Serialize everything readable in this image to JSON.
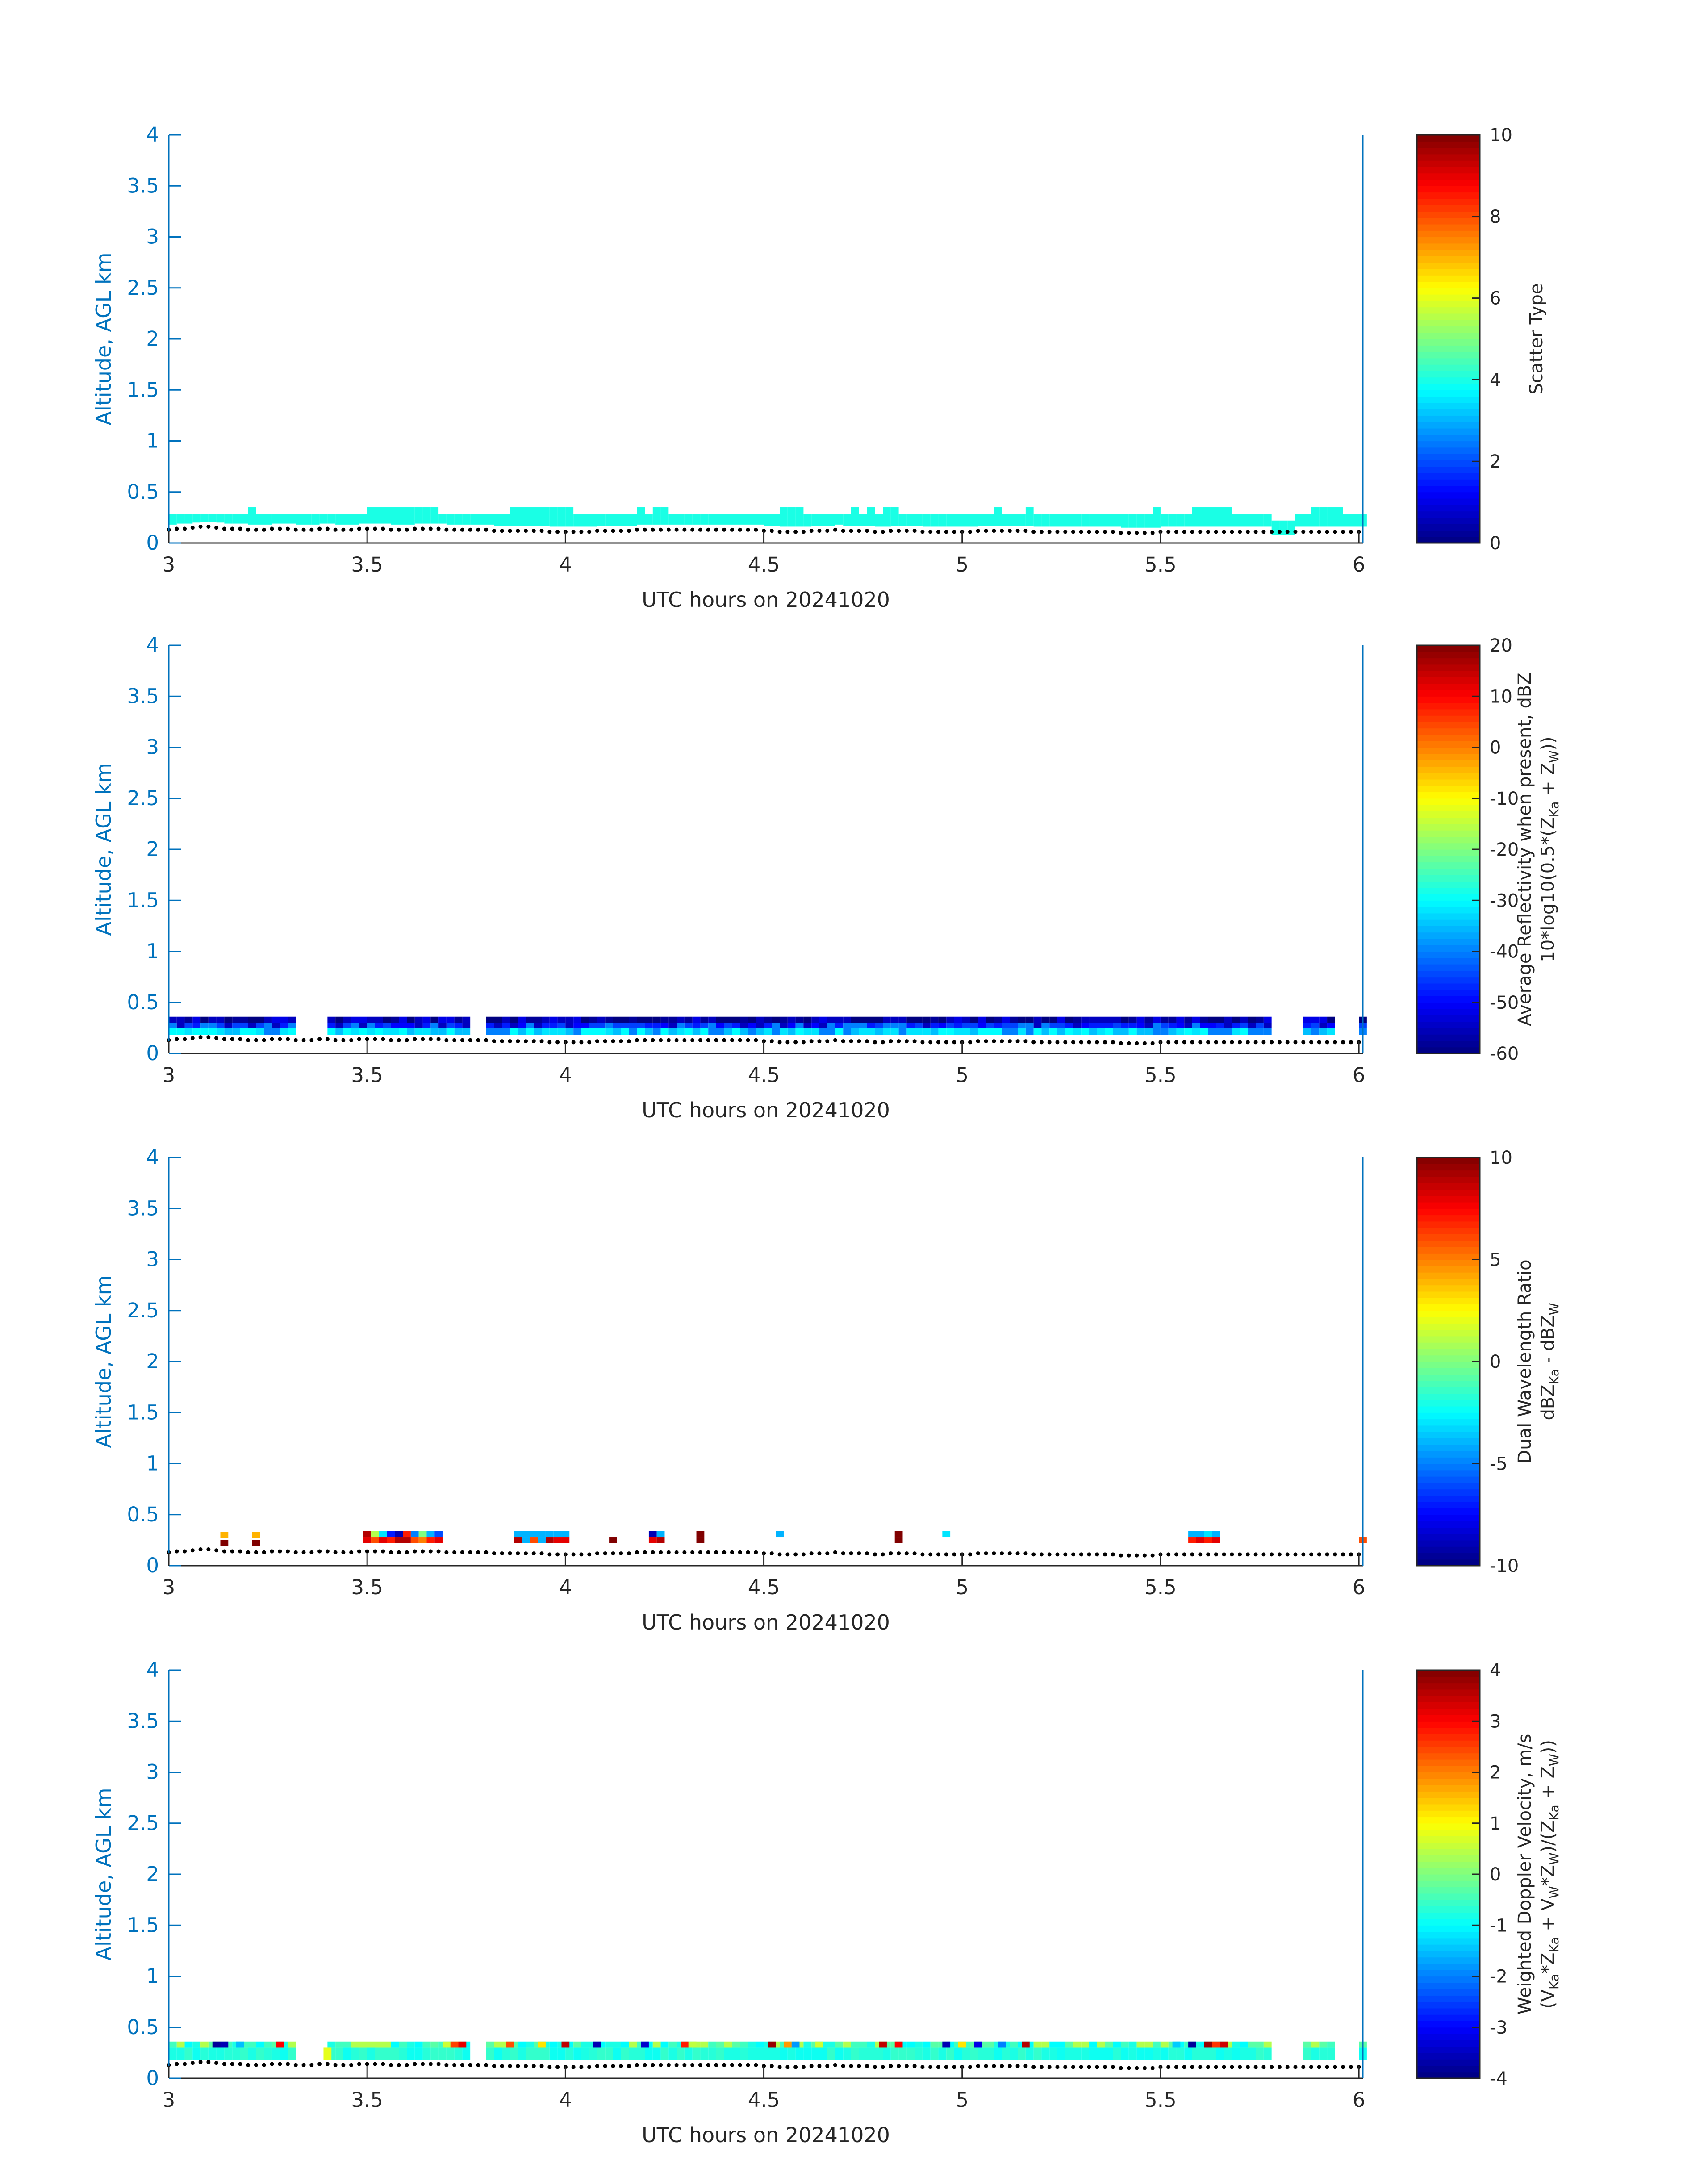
{
  "chart_data": [
    {
      "type": "heatmap",
      "xlabel": "UTC hours on 20241020",
      "ylabel": "Altitude, AGL km",
      "xlim": [
        3,
        6.01
      ],
      "ylim": [
        0,
        4
      ],
      "xticks": [
        "3",
        "3.5",
        "4",
        "4.5",
        "5",
        "5.5",
        "6"
      ],
      "yticks": [
        "0",
        "0.5",
        "1",
        "1.5",
        "2",
        "2.5",
        "3",
        "3.5",
        "4"
      ],
      "colorbar": {
        "label_lines": [
          [
            {
              "t": "Scatter Type"
            }
          ]
        ],
        "ticks": [
          "0",
          "2",
          "4",
          "6",
          "8",
          "10"
        ],
        "range": [
          0,
          10
        ],
        "colormap": "jet"
      },
      "layer": {
        "x_start": 3.0,
        "x_end": 6.01,
        "dx": 0.02,
        "base_km": [
          0.14,
          0.15,
          0.15,
          0.16,
          0.17,
          0.17,
          0.16,
          0.15,
          0.15,
          0.15,
          0.14,
          0.14,
          0.14,
          0.15,
          0.15,
          0.15,
          0.14,
          0.14,
          0.14,
          0.15,
          0.15,
          0.14,
          0.14,
          0.14,
          0.15,
          0.15,
          0.15,
          0.15,
          0.14,
          0.14,
          0.14,
          0.15,
          0.15,
          0.15,
          0.15,
          0.14,
          0.14,
          0.14,
          0.14,
          0.14,
          0.14,
          0.13,
          0.13,
          0.13,
          0.13,
          0.13,
          0.13,
          0.13,
          0.12,
          0.12,
          0.12,
          0.12,
          0.12,
          0.12,
          0.13,
          0.13,
          0.13,
          0.13,
          0.13,
          0.14,
          0.14,
          0.14,
          0.14,
          0.14,
          0.14,
          0.14,
          0.14,
          0.14,
          0.14,
          0.14,
          0.14,
          0.14,
          0.14,
          0.14,
          0.14,
          0.13,
          0.13,
          0.12,
          0.12,
          0.12,
          0.12,
          0.13,
          0.13,
          0.13,
          0.14,
          0.13,
          0.13,
          0.13,
          0.13,
          0.12,
          0.12,
          0.13,
          0.13,
          0.13,
          0.13,
          0.12,
          0.12,
          0.12,
          0.12,
          0.12,
          0.12,
          0.12,
          0.13,
          0.13,
          0.13,
          0.13,
          0.13,
          0.13,
          0.13,
          0.12,
          0.12,
          0.12,
          0.12,
          0.12,
          0.12,
          0.12,
          0.12,
          0.12,
          0.12,
          0.12,
          0.11,
          0.11,
          0.11,
          0.11,
          0.11,
          0.12,
          0.12,
          0.12,
          0.12,
          0.12,
          0.12,
          0.12,
          0.12,
          0.12,
          0.12,
          0.12,
          0.12,
          0.12,
          0.12,
          0.12,
          0.12,
          0.12,
          0.12,
          0.12,
          0.12,
          0.12,
          0.12,
          0.12,
          0.12,
          0.12,
          0.12
        ],
        "rows": [
          {
            "y0": 0.18,
            "y1": 0.28,
            "cells": [
              4
            ]
          },
          {
            "y0": 0.28,
            "y1": 0.35,
            "cells": [
              4
            ]
          }
        ],
        "gaps": [
          [
            5.77,
            5.82
          ]
        ],
        "top_bumps": [
          [
            3.2,
            3.22
          ],
          [
            3.5,
            3.68
          ],
          [
            3.86,
            4.02
          ],
          [
            4.17,
            4.19
          ],
          [
            4.21,
            4.25
          ],
          [
            4.53,
            4.58
          ],
          [
            4.7,
            4.72
          ],
          [
            4.75,
            4.77
          ],
          [
            4.79,
            4.82
          ],
          [
            5.06,
            5.08
          ],
          [
            5.15,
            5.17
          ],
          [
            5.47,
            5.49
          ],
          [
            5.56,
            5.66
          ],
          [
            5.86,
            5.94
          ]
        ],
        "cell_values": [
          4
        ]
      },
      "surface": {
        "y": [
          0.14,
          0.14,
          0.15,
          0.16,
          0.17,
          0.16,
          0.15,
          0.15,
          0.14,
          0.14,
          0.13
        ]
      }
    },
    {
      "type": "heatmap",
      "xlabel": "UTC hours on 20241020",
      "ylabel": "Altitude, AGL km",
      "xlim": [
        3,
        6.01
      ],
      "ylim": [
        0,
        4
      ],
      "xticks": [
        "3",
        "3.5",
        "4",
        "4.5",
        "5",
        "5.5",
        "6"
      ],
      "yticks": [
        "0",
        "0.5",
        "1",
        "1.5",
        "2",
        "2.5",
        "3",
        "3.5",
        "4"
      ],
      "colorbar": {
        "label_lines": [
          [
            {
              "t": "Average Reflectivity when present, dBZ"
            }
          ],
          [
            {
              "t": "10*log10(0.5*(Z"
            },
            {
              "t": "Ka",
              "sub": true
            },
            {
              "t": " + Z"
            },
            {
              "t": "W",
              "sub": true
            },
            {
              "t": "))"
            }
          ]
        ],
        "ticks": [
          "-60",
          "-50",
          "-40",
          "-30",
          "-20",
          "-10",
          "0",
          "10",
          "20"
        ],
        "range": [
          -60,
          20
        ],
        "colormap": "jet"
      },
      "layer": {
        "x_start": 3.0,
        "x_end": 6.01,
        "dx": 0.02,
        "gaps": [
          [
            3.31,
            3.39
          ],
          [
            3.41,
            3.42
          ],
          [
            3.76,
            3.8
          ],
          [
            5.76,
            5.84
          ],
          [
            5.92,
            5.98
          ]
        ],
        "rows": [
          {
            "y0": 0.18,
            "y1": 0.25,
            "cells": [
              -30,
              -35,
              -40,
              -32
            ]
          },
          {
            "y0": 0.25,
            "y1": 0.3,
            "cells": [
              -45,
              -50,
              -40,
              -55,
              -48
            ]
          },
          {
            "y0": 0.3,
            "y1": 0.36,
            "cells": [
              -58,
              -55,
              -60,
              -52
            ]
          }
        ]
      }
    },
    {
      "type": "heatmap",
      "xlabel": "UTC hours on 20241020",
      "ylabel": "Altitude, AGL km",
      "xlim": [
        3,
        6.01
      ],
      "ylim": [
        0,
        4
      ],
      "xticks": [
        "3",
        "3.5",
        "4",
        "4.5",
        "5",
        "5.5",
        "6"
      ],
      "yticks": [
        "0",
        "0.5",
        "1",
        "1.5",
        "2",
        "2.5",
        "3",
        "3.5",
        "4"
      ],
      "colorbar": {
        "label_lines": [
          [
            {
              "t": "Dual Wavelength Ratio"
            }
          ],
          [
            {
              "t": "dBZ"
            },
            {
              "t": "Ka",
              "sub": true
            },
            {
              "t": " - dBZ"
            },
            {
              "t": "W",
              "sub": true
            }
          ]
        ],
        "ticks": [
          "-10",
          "-5",
          "0",
          "5",
          "10"
        ],
        "range": [
          -10,
          10
        ],
        "colormap": "jet"
      },
      "layer": {
        "x_start": 3.0,
        "x_end": 6.01,
        "dx": 0.02,
        "cells": [
          {
            "x": 3.13,
            "y": 0.22,
            "v": 10
          },
          {
            "x": 3.13,
            "y": 0.3,
            "v": 4
          },
          {
            "x": 3.21,
            "y": 0.22,
            "v": 10
          },
          {
            "x": 3.21,
            "y": 0.3,
            "v": 4
          },
          {
            "x": 3.49,
            "y": 0.25,
            "v": 8
          },
          {
            "x": 3.51,
            "y": 0.25,
            "v": 6
          },
          {
            "x": 3.53,
            "y": 0.25,
            "v": 8
          },
          {
            "x": 3.55,
            "y": 0.25,
            "v": 7
          },
          {
            "x": 3.57,
            "y": 0.25,
            "v": 9
          },
          {
            "x": 3.59,
            "y": 0.25,
            "v": 9
          },
          {
            "x": 3.61,
            "y": 0.25,
            "v": 6
          },
          {
            "x": 3.63,
            "y": 0.25,
            "v": 5
          },
          {
            "x": 3.65,
            "y": 0.25,
            "v": 7
          },
          {
            "x": 3.67,
            "y": 0.25,
            "v": 8
          },
          {
            "x": 3.49,
            "y": 0.31,
            "v": 9
          },
          {
            "x": 3.51,
            "y": 0.31,
            "v": 1
          },
          {
            "x": 3.53,
            "y": 0.31,
            "v": -3
          },
          {
            "x": 3.55,
            "y": 0.31,
            "v": -7
          },
          {
            "x": 3.57,
            "y": 0.31,
            "v": -9
          },
          {
            "x": 3.59,
            "y": 0.31,
            "v": 7
          },
          {
            "x": 3.61,
            "y": 0.31,
            "v": -5
          },
          {
            "x": 3.63,
            "y": 0.31,
            "v": 0
          },
          {
            "x": 3.65,
            "y": 0.31,
            "v": -4
          },
          {
            "x": 3.67,
            "y": 0.31,
            "v": -6
          },
          {
            "x": 3.87,
            "y": 0.25,
            "v": 9
          },
          {
            "x": 3.89,
            "y": 0.25,
            "v": -4
          },
          {
            "x": 3.91,
            "y": 0.25,
            "v": 6
          },
          {
            "x": 3.93,
            "y": 0.25,
            "v": -4
          },
          {
            "x": 3.95,
            "y": 0.25,
            "v": 9
          },
          {
            "x": 3.97,
            "y": 0.25,
            "v": 8
          },
          {
            "x": 3.99,
            "y": 0.25,
            "v": 8
          },
          {
            "x": 3.87,
            "y": 0.31,
            "v": -4
          },
          {
            "x": 3.89,
            "y": 0.31,
            "v": -4
          },
          {
            "x": 3.91,
            "y": 0.31,
            "v": -4
          },
          {
            "x": 3.93,
            "y": 0.31,
            "v": -4
          },
          {
            "x": 3.95,
            "y": 0.31,
            "v": -4
          },
          {
            "x": 3.97,
            "y": 0.31,
            "v": -4
          },
          {
            "x": 3.99,
            "y": 0.31,
            "v": -4
          },
          {
            "x": 4.11,
            "y": 0.25,
            "v": 10
          },
          {
            "x": 4.21,
            "y": 0.25,
            "v": 8
          },
          {
            "x": 4.23,
            "y": 0.25,
            "v": 9
          },
          {
            "x": 4.21,
            "y": 0.31,
            "v": -9
          },
          {
            "x": 4.23,
            "y": 0.31,
            "v": -4
          },
          {
            "x": 4.33,
            "y": 0.25,
            "v": 10
          },
          {
            "x": 4.33,
            "y": 0.31,
            "v": 10
          },
          {
            "x": 4.53,
            "y": 0.31,
            "v": -4
          },
          {
            "x": 4.83,
            "y": 0.25,
            "v": 10
          },
          {
            "x": 4.83,
            "y": 0.31,
            "v": 10
          },
          {
            "x": 4.95,
            "y": 0.31,
            "v": -3
          },
          {
            "x": 5.57,
            "y": 0.25,
            "v": 7
          },
          {
            "x": 5.59,
            "y": 0.25,
            "v": 8
          },
          {
            "x": 5.61,
            "y": 0.25,
            "v": 7
          },
          {
            "x": 5.63,
            "y": 0.25,
            "v": 8
          },
          {
            "x": 5.57,
            "y": 0.31,
            "v": -4
          },
          {
            "x": 5.59,
            "y": 0.31,
            "v": -4
          },
          {
            "x": 5.61,
            "y": 0.31,
            "v": -3
          },
          {
            "x": 5.63,
            "y": 0.31,
            "v": -4
          },
          {
            "x": 6.0,
            "y": 0.25,
            "v": 6
          }
        ]
      }
    },
    {
      "type": "heatmap",
      "xlabel": "UTC hours on 20241020",
      "ylabel": "Altitude, AGL km",
      "xlim": [
        3,
        6.01
      ],
      "ylim": [
        0,
        4
      ],
      "xticks": [
        "3",
        "3.5",
        "4",
        "4.5",
        "5",
        "5.5",
        "6"
      ],
      "yticks": [
        "0",
        "0.5",
        "1",
        "1.5",
        "2",
        "2.5",
        "3",
        "3.5",
        "4"
      ],
      "colorbar": {
        "label_lines": [
          [
            {
              "t": "Weighted Doppler Velocity, m/s"
            }
          ],
          [
            {
              "t": "(V"
            },
            {
              "t": "Ka",
              "sub": true
            },
            {
              "t": "*Z"
            },
            {
              "t": "Ka",
              "sub": true
            },
            {
              "t": " + V"
            },
            {
              "t": "W",
              "sub": true
            },
            {
              "t": "*Z"
            },
            {
              "t": "W",
              "sub": true
            },
            {
              "t": ")/(Z"
            },
            {
              "t": "Ka",
              "sub": true
            },
            {
              "t": " + Z"
            },
            {
              "t": "W",
              "sub": true
            },
            {
              "t": "))"
            }
          ]
        ],
        "ticks": [
          "-4",
          "-3",
          "-2",
          "-1",
          "0",
          "1",
          "2",
          "3",
          "4"
        ],
        "range": [
          -4,
          4
        ],
        "colormap": "jet"
      },
      "layer": {
        "x_start": 3.0,
        "x_end": 6.01,
        "dx": 0.02,
        "gaps": [
          [
            3.31,
            3.39
          ],
          [
            3.41,
            3.42
          ],
          [
            3.76,
            3.8
          ],
          [
            5.76,
            5.84
          ],
          [
            5.92,
            5.98
          ]
        ],
        "rows": [
          {
            "y0": 0.18,
            "y1": 0.3,
            "cells": [
              -0.8,
              -0.6,
              -0.9,
              -0.7
            ]
          },
          {
            "y0": 0.3,
            "y1": 0.36,
            "cells": [
              -0.5,
              -0.3,
              -0.8,
              0.4,
              -1.0
            ]
          }
        ],
        "speckles": [
          {
            "x": 3.11,
            "v": -3.8
          },
          {
            "x": 3.13,
            "v": -3.6
          },
          {
            "x": 3.17,
            "v": -1.5
          },
          {
            "x": 3.27,
            "v": 3.0
          },
          {
            "x": 3.69,
            "v": 0.6
          },
          {
            "x": 3.71,
            "v": 2.5
          },
          {
            "x": 3.73,
            "v": 3.2
          },
          {
            "x": 3.85,
            "v": 2.4
          },
          {
            "x": 3.93,
            "v": 1.2
          },
          {
            "x": 3.99,
            "v": 3.5
          },
          {
            "x": 4.07,
            "v": -3.6
          },
          {
            "x": 4.19,
            "v": -3.4
          },
          {
            "x": 4.29,
            "v": 2.8
          },
          {
            "x": 4.31,
            "v": 0.5
          },
          {
            "x": 4.51,
            "v": 3.8
          },
          {
            "x": 4.55,
            "v": 1.8
          },
          {
            "x": 4.57,
            "v": -1.8
          },
          {
            "x": 4.63,
            "v": 0.6
          },
          {
            "x": 4.79,
            "v": 3.5
          },
          {
            "x": 4.83,
            "v": 3.0
          },
          {
            "x": 4.95,
            "v": -3.6
          },
          {
            "x": 4.99,
            "v": 1.2
          },
          {
            "x": 5.03,
            "v": -3.2
          },
          {
            "x": 5.09,
            "v": -2.0
          },
          {
            "x": 5.15,
            "v": 3.6
          },
          {
            "x": 5.53,
            "v": -1.4
          },
          {
            "x": 5.57,
            "v": -3.8
          },
          {
            "x": 5.61,
            "v": 3.8
          },
          {
            "x": 5.63,
            "v": 2.6
          },
          {
            "x": 5.65,
            "v": 3.4
          }
        ],
        "low_cells": [
          {
            "x": 3.39,
            "v": 0.8
          }
        ]
      }
    }
  ]
}
